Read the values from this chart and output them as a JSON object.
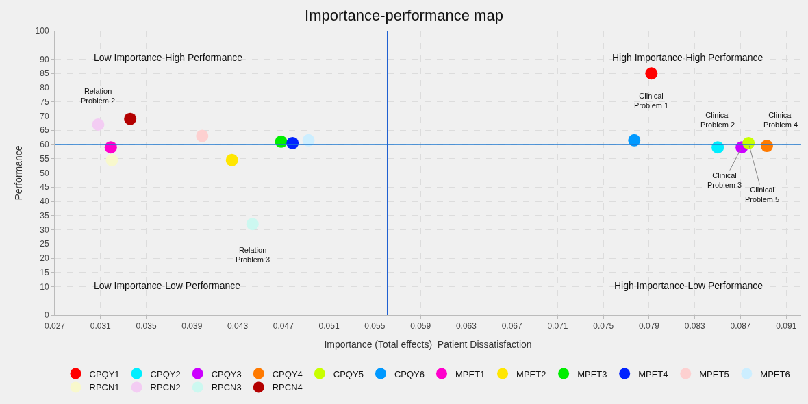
{
  "chart_data": {
    "type": "scatter",
    "title": "Importance-performance map",
    "xlabel": "Importance (Total effects)  Patient Dissatisfaction",
    "ylabel": "Performance",
    "xlim": [
      0.027,
      0.0923
    ],
    "xticks": [
      0.027,
      0.031,
      0.035,
      0.039,
      0.043,
      0.047,
      0.051,
      0.055,
      0.059,
      0.063,
      0.067,
      0.071,
      0.075,
      0.079,
      0.083,
      0.087,
      0.091
    ],
    "ylim": [
      0,
      100
    ],
    "yticks": [
      0,
      10,
      15,
      20,
      25,
      30,
      35,
      40,
      45,
      50,
      55,
      60,
      65,
      70,
      75,
      80,
      85,
      90,
      100
    ],
    "grid": true,
    "legend": "bottom",
    "marker": "circle",
    "series": [
      {
        "name": "CPQY1",
        "color": "#ff0000",
        "x": [
          0.0792
        ],
        "values": [
          85
        ]
      },
      {
        "name": "CPQY2",
        "color": "#00eeff",
        "x": [
          0.085
        ],
        "values": [
          59
        ]
      },
      {
        "name": "CPQY3",
        "color": "#cc00ff",
        "x": [
          0.0871
        ],
        "values": [
          59
        ]
      },
      {
        "name": "CPQY4",
        "color": "#ff7a00",
        "x": [
          0.0893
        ],
        "values": [
          59.5
        ]
      },
      {
        "name": "CPQY5",
        "color": "#c8ff00",
        "x": [
          0.0877
        ],
        "values": [
          60.5
        ]
      },
      {
        "name": "CPQY6",
        "color": "#0099ff",
        "x": [
          0.0777
        ],
        "values": [
          61.5
        ]
      },
      {
        "name": "MPET1",
        "color": "#ff00cc",
        "x": [
          0.0319
        ],
        "values": [
          59
        ]
      },
      {
        "name": "MPET2",
        "color": "#ffe600",
        "x": [
          0.0425
        ],
        "values": [
          54.5
        ]
      },
      {
        "name": "MPET3",
        "color": "#00ee00",
        "x": [
          0.0468
        ],
        "values": [
          61
        ]
      },
      {
        "name": "MPET4",
        "color": "#0022ff",
        "x": [
          0.0478
        ],
        "values": [
          60.5
        ]
      },
      {
        "name": "MPET5",
        "color": "#fdd0d0",
        "x": [
          0.0399
        ],
        "values": [
          63
        ]
      },
      {
        "name": "MPET6",
        "color": "#cceeff",
        "x": [
          0.0492
        ],
        "values": [
          61.5
        ]
      },
      {
        "name": "RPCN1",
        "color": "#f8f8cc",
        "x": [
          0.032
        ],
        "values": [
          54.5
        ]
      },
      {
        "name": "RPCN2",
        "color": "#f3ccf3",
        "x": [
          0.0308
        ],
        "values": [
          67
        ]
      },
      {
        "name": "RPCN3",
        "color": "#ccf8f0",
        "x": [
          0.0443
        ],
        "values": [
          32
        ]
      },
      {
        "name": "RPCN4",
        "color": "#b30000",
        "x": [
          0.0336
        ],
        "values": [
          69
        ]
      }
    ],
    "ref_lines": [
      {
        "axis": "y",
        "value": 60,
        "color": "#1f78d1"
      },
      {
        "axis": "x",
        "value": 0.0561,
        "color": "#1f60d1"
      }
    ],
    "annotations": [
      "Low Importance-High Performance",
      "High Importance-High Performance",
      "Low Importance-Low Performance",
      "High Importance-Low Performance",
      {
        "text": "Relation\nProblem 2",
        "x": 0.0308,
        "y": 67
      },
      {
        "text": "Relation\nProblem 3",
        "x": 0.0443,
        "y": 32
      },
      {
        "text": "Clinical\nProblem 1",
        "x": 0.0792,
        "y": 85
      },
      {
        "text": "Clinical\nProblem 2",
        "x": 0.085,
        "y": 59
      },
      {
        "text": "Clinical\nProblem 3",
        "x": 0.0871,
        "y": 59
      },
      {
        "text": "Clinical\nProblem 4",
        "x": 0.0893,
        "y": 59.5
      },
      {
        "text": "Clinical\nProblem 5",
        "x": 0.0877,
        "y": 60.5
      }
    ]
  }
}
